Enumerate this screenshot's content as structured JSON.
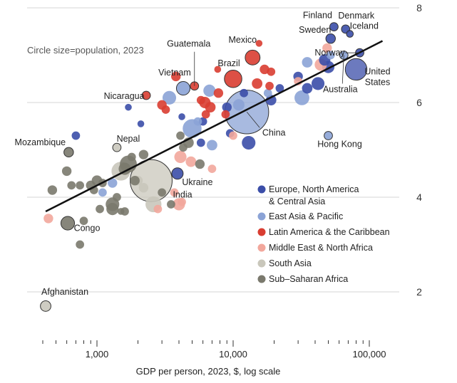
{
  "chart_data": {
    "type": "scatter",
    "title": "",
    "xlabel": "GDP per person, 2023, $, log scale",
    "ylabel": "",
    "x_scale": "log",
    "xlim": [
      400,
      140000
    ],
    "ylim": [
      1.5,
      8
    ],
    "x_ticks": [
      1000,
      10000,
      100000
    ],
    "x_tick_labels": [
      "1,000",
      "10,000",
      "100,000"
    ],
    "y_ticks": [
      2,
      4,
      6,
      8
    ],
    "y_tick_labels": [
      "2",
      "4",
      "6",
      "8"
    ],
    "grid": true,
    "size_note": "Circle size=population, 2023",
    "legend_position": "right",
    "trend_line": {
      "x": [
        420,
        125000
      ],
      "y": [
        3.7,
        7.3
      ]
    },
    "series": [
      {
        "name": "Europe, North America & Central Asia",
        "color": "#3b4ea8",
        "points": [
          {
            "x": 55000,
            "y": 7.6,
            "size": 2,
            "label": "Finland"
          },
          {
            "x": 67000,
            "y": 7.55,
            "size": 2,
            "label": "Denmark"
          },
          {
            "x": 52000,
            "y": 7.35,
            "size": 3,
            "label": "Sweden"
          },
          {
            "x": 72000,
            "y": 7.45,
            "size": 1,
            "label": "Iceland"
          },
          {
            "x": 85000,
            "y": 7.05,
            "size": 2,
            "label": "Norway"
          },
          {
            "x": 80000,
            "y": 6.7,
            "size": 25,
            "label": "United States"
          },
          {
            "x": 3900,
            "y": 4.5,
            "size": 5,
            "label": "Ukraine"
          },
          {
            "x": 50000,
            "y": 6.75,
            "size": 6
          },
          {
            "x": 47000,
            "y": 6.9,
            "size": 5
          },
          {
            "x": 42000,
            "y": 6.4,
            "size": 7
          },
          {
            "x": 35000,
            "y": 6.3,
            "size": 4
          },
          {
            "x": 13000,
            "y": 5.15,
            "size": 8
          },
          {
            "x": 19000,
            "y": 6.05,
            "size": 4
          },
          {
            "x": 30000,
            "y": 6.55,
            "size": 3
          },
          {
            "x": 9000,
            "y": 5.9,
            "size": 3
          },
          {
            "x": 12000,
            "y": 6.2,
            "size": 2
          },
          {
            "x": 6000,
            "y": 5.6,
            "size": 2
          },
          {
            "x": 5800,
            "y": 5.15,
            "size": 2
          },
          {
            "x": 700,
            "y": 5.3,
            "size": 2
          },
          {
            "x": 22000,
            "y": 6.3,
            "size": 2
          },
          {
            "x": 9500,
            "y": 5.35,
            "size": 2
          },
          {
            "x": 1700,
            "y": 5.9,
            "size": 1
          },
          {
            "x": 2100,
            "y": 5.55,
            "size": 1
          },
          {
            "x": 4200,
            "y": 5.7,
            "size": 1
          }
        ]
      },
      {
        "name": "East Asia & Pacific",
        "color": "#8ba3d6",
        "points": [
          {
            "x": 4300,
            "y": 6.3,
            "size": 8,
            "label": "Vietnam"
          },
          {
            "x": 12600,
            "y": 5.8,
            "size": 120,
            "label": "China"
          },
          {
            "x": 50000,
            "y": 5.3,
            "size": 2,
            "label": "Hong Kong"
          },
          {
            "x": 65000,
            "y": 7.0,
            "size": 2,
            "label": "Australia"
          },
          {
            "x": 5000,
            "y": 5.45,
            "size": 18
          },
          {
            "x": 3400,
            "y": 6.1,
            "size": 8
          },
          {
            "x": 32000,
            "y": 6.1,
            "size": 10
          },
          {
            "x": 6700,
            "y": 6.25,
            "size": 6
          },
          {
            "x": 35000,
            "y": 6.85,
            "size": 4
          },
          {
            "x": 11000,
            "y": 5.95,
            "size": 5
          },
          {
            "x": 1300,
            "y": 4.3,
            "size": 3
          },
          {
            "x": 7000,
            "y": 5.1,
            "size": 4
          },
          {
            "x": 52000,
            "y": 7.0,
            "size": 2
          },
          {
            "x": 18000,
            "y": 6.2,
            "size": 2
          },
          {
            "x": 5500,
            "y": 5.6,
            "size": 2
          },
          {
            "x": 1100,
            "y": 4.1,
            "size": 2
          }
        ]
      },
      {
        "name": "Latin America & the Caribbean",
        "color": "#d93d31",
        "points": [
          {
            "x": 5200,
            "y": 6.35,
            "size": 2,
            "label": "Guatemala"
          },
          {
            "x": 13900,
            "y": 6.95,
            "size": 10,
            "label": "Mexico"
          },
          {
            "x": 10000,
            "y": 6.5,
            "size": 15,
            "label": "Brazil"
          },
          {
            "x": 2300,
            "y": 6.15,
            "size": 2,
            "label": "Nicaragua"
          },
          {
            "x": 3800,
            "y": 6.55,
            "size": 3
          },
          {
            "x": 6200,
            "y": 6.0,
            "size": 5
          },
          {
            "x": 6800,
            "y": 5.9,
            "size": 4
          },
          {
            "x": 15000,
            "y": 6.4,
            "size": 4
          },
          {
            "x": 17000,
            "y": 6.7,
            "size": 3
          },
          {
            "x": 18500,
            "y": 6.35,
            "size": 2
          },
          {
            "x": 3000,
            "y": 5.95,
            "size": 3
          },
          {
            "x": 7800,
            "y": 6.2,
            "size": 3
          },
          {
            "x": 19000,
            "y": 6.65,
            "size": 2
          },
          {
            "x": 8800,
            "y": 5.75,
            "size": 2
          },
          {
            "x": 3200,
            "y": 5.85,
            "size": 2
          },
          {
            "x": 6300,
            "y": 5.75,
            "size": 2
          },
          {
            "x": 7700,
            "y": 6.7,
            "size": 1
          },
          {
            "x": 5800,
            "y": 6.05,
            "size": 2
          },
          {
            "x": 15500,
            "y": 7.25,
            "size": 1
          }
        ]
      },
      {
        "name": "Middle East & North Africa",
        "color": "#f2a79c",
        "points": [
          {
            "x": 44000,
            "y": 6.8,
            "size": 6
          },
          {
            "x": 49000,
            "y": 7.15,
            "size": 3
          },
          {
            "x": 4100,
            "y": 4.85,
            "size": 6
          },
          {
            "x": 4000,
            "y": 3.85,
            "size": 6
          },
          {
            "x": 4900,
            "y": 4.75,
            "size": 4
          },
          {
            "x": 3700,
            "y": 4.1,
            "size": 2
          },
          {
            "x": 440,
            "y": 3.55,
            "size": 3
          },
          {
            "x": 4200,
            "y": 3.9,
            "size": 2
          },
          {
            "x": 30000,
            "y": 6.45,
            "size": 2
          },
          {
            "x": 7000,
            "y": 4.6,
            "size": 2
          },
          {
            "x": 10000,
            "y": 5.3,
            "size": 2
          },
          {
            "x": 2800,
            "y": 3.75,
            "size": 2
          }
        ]
      },
      {
        "name": "South Asia",
        "color": "#c9c7bb",
        "points": [
          {
            "x": 2500,
            "y": 4.35,
            "size": 110,
            "label": "India"
          },
          {
            "x": 1400,
            "y": 5.05,
            "size": 2,
            "label": "Nepal"
          },
          {
            "x": 420,
            "y": 1.7,
            "size": 4,
            "label": "Afghanistan"
          },
          {
            "x": 1500,
            "y": 4.55,
            "size": 18
          },
          {
            "x": 2600,
            "y": 3.85,
            "size": 12
          },
          {
            "x": 2000,
            "y": 4.35,
            "size": 3
          },
          {
            "x": 2200,
            "y": 4.2,
            "size": 3
          }
        ]
      },
      {
        "name": "Sub–Saharan Africa",
        "color": "#7a796d",
        "points": [
          {
            "x": 620,
            "y": 4.95,
            "size": 3,
            "label": "Mozambique"
          },
          {
            "x": 610,
            "y": 3.45,
            "size": 8,
            "label": "Congo"
          },
          {
            "x": 1700,
            "y": 4.7,
            "size": 14
          },
          {
            "x": 1600,
            "y": 4.6,
            "size": 6
          },
          {
            "x": 1300,
            "y": 3.85,
            "size": 8
          },
          {
            "x": 1300,
            "y": 3.75,
            "size": 6
          },
          {
            "x": 1000,
            "y": 4.35,
            "size": 4
          },
          {
            "x": 600,
            "y": 4.55,
            "size": 3
          },
          {
            "x": 750,
            "y": 4.25,
            "size": 2
          },
          {
            "x": 470,
            "y": 4.15,
            "size": 3
          },
          {
            "x": 900,
            "y": 4.25,
            "size": 3
          },
          {
            "x": 650,
            "y": 4.25,
            "size": 2
          },
          {
            "x": 4100,
            "y": 5.3,
            "size": 2
          },
          {
            "x": 1800,
            "y": 4.85,
            "size": 2
          },
          {
            "x": 2200,
            "y": 4.9,
            "size": 3
          },
          {
            "x": 5700,
            "y": 4.7,
            "size": 3
          },
          {
            "x": 4700,
            "y": 5.15,
            "size": 4
          },
          {
            "x": 4300,
            "y": 5.05,
            "size": 2
          },
          {
            "x": 950,
            "y": 4.15,
            "size": 2
          },
          {
            "x": 1600,
            "y": 3.7,
            "size": 2
          },
          {
            "x": 1900,
            "y": 4.35,
            "size": 3
          },
          {
            "x": 1100,
            "y": 4.3,
            "size": 2
          },
          {
            "x": 800,
            "y": 3.5,
            "size": 2
          },
          {
            "x": 1050,
            "y": 3.75,
            "size": 2
          },
          {
            "x": 750,
            "y": 3.0,
            "size": 2
          },
          {
            "x": 3500,
            "y": 3.85,
            "size": 2
          },
          {
            "x": 1400,
            "y": 4.0,
            "size": 2
          },
          {
            "x": 3000,
            "y": 4.1,
            "size": 2
          },
          {
            "x": 1500,
            "y": 3.7,
            "size": 1
          }
        ]
      }
    ]
  }
}
